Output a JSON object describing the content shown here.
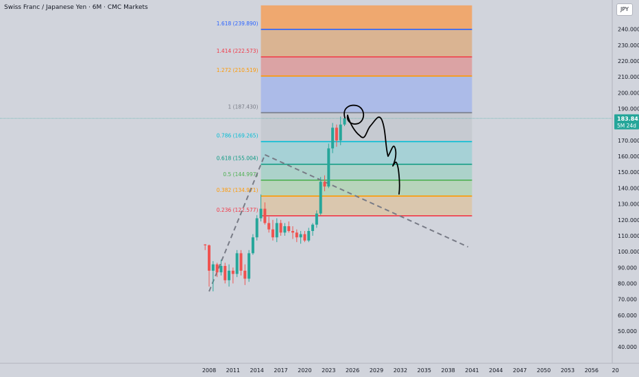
{
  "header": {
    "title": "Swiss Franc / Japanese Yen · 6M · CMC Markets",
    "currency": "JPY"
  },
  "price_label": {
    "value": "183.841",
    "countdown": "5M 24d",
    "color": "#26a69a"
  },
  "colors": {
    "background": "#d1d4dc",
    "up": "#26a69a",
    "down": "#ef5350",
    "trendline": "#787b86",
    "drawing": "#000000"
  },
  "chart_data": {
    "type": "candlestick",
    "title": "Swiss Franc / Japanese Yen · 6M · CMC Markets",
    "x_tick_labels": [
      "2008",
      "2011",
      "2014",
      "2017",
      "2020",
      "2023",
      "2026",
      "2029",
      "2032",
      "2035",
      "2038",
      "2041",
      "2044",
      "2047",
      "2050",
      "2053",
      "2056",
      "20"
    ],
    "y_tick_labels": [
      "40.000",
      "50.000",
      "60.000",
      "70.000",
      "80.000",
      "90.000",
      "100.000",
      "110.000",
      "120.000",
      "130.000",
      "140.000",
      "150.000",
      "160.000",
      "170.000",
      "180.000",
      "190.000",
      "200.000",
      "210.000",
      "220.000",
      "230.000",
      "240.000"
    ],
    "y_range": [
      30,
      255
    ],
    "x_range": [
      2005.5,
      2058
    ],
    "candles": [
      {
        "t": 2007.5,
        "o": 104.5,
        "h": 104.8,
        "l": 101,
        "c": 104
      },
      {
        "t": 2008.0,
        "o": 104,
        "h": 104.5,
        "l": 78,
        "c": 88
      },
      {
        "t": 2008.5,
        "o": 88,
        "h": 94,
        "l": 75,
        "c": 92
      },
      {
        "t": 2009.0,
        "o": 92,
        "h": 93,
        "l": 84,
        "c": 87
      },
      {
        "t": 2009.5,
        "o": 87,
        "h": 95,
        "l": 85,
        "c": 91
      },
      {
        "t": 2010.0,
        "o": 91,
        "h": 93,
        "l": 80,
        "c": 82
      },
      {
        "t": 2010.5,
        "o": 82,
        "h": 92,
        "l": 78,
        "c": 88
      },
      {
        "t": 2011.0,
        "o": 88,
        "h": 90,
        "l": 80,
        "c": 86
      },
      {
        "t": 2011.5,
        "o": 86,
        "h": 101,
        "l": 84,
        "c": 99
      },
      {
        "t": 2012.0,
        "o": 99,
        "h": 101,
        "l": 85,
        "c": 88
      },
      {
        "t": 2012.5,
        "o": 88,
        "h": 92,
        "l": 79,
        "c": 83
      },
      {
        "t": 2013.0,
        "o": 83,
        "h": 101,
        "l": 81,
        "c": 99
      },
      {
        "t": 2013.5,
        "o": 99,
        "h": 111,
        "l": 98,
        "c": 109
      },
      {
        "t": 2014.0,
        "o": 109,
        "h": 123,
        "l": 107,
        "c": 121
      },
      {
        "t": 2014.5,
        "o": 121,
        "h": 136,
        "l": 119,
        "c": 127
      },
      {
        "t": 2015.0,
        "o": 127,
        "h": 131,
        "l": 117,
        "c": 118
      },
      {
        "t": 2015.5,
        "o": 118,
        "h": 122,
        "l": 112,
        "c": 114
      },
      {
        "t": 2016.0,
        "o": 114,
        "h": 120,
        "l": 107,
        "c": 109
      },
      {
        "t": 2016.5,
        "o": 109,
        "h": 121,
        "l": 106,
        "c": 118
      },
      {
        "t": 2017.0,
        "o": 118,
        "h": 120,
        "l": 110,
        "c": 112
      },
      {
        "t": 2017.5,
        "o": 112,
        "h": 118,
        "l": 110,
        "c": 116
      },
      {
        "t": 2018.0,
        "o": 116,
        "h": 119,
        "l": 112,
        "c": 113
      },
      {
        "t": 2018.5,
        "o": 113,
        "h": 116,
        "l": 108,
        "c": 112
      },
      {
        "t": 2019.0,
        "o": 112,
        "h": 114,
        "l": 106,
        "c": 109
      },
      {
        "t": 2019.5,
        "o": 109,
        "h": 113,
        "l": 105,
        "c": 111
      },
      {
        "t": 2020.0,
        "o": 111,
        "h": 113,
        "l": 106,
        "c": 107
      },
      {
        "t": 2020.5,
        "o": 107,
        "h": 115,
        "l": 106,
        "c": 113
      },
      {
        "t": 2021.0,
        "o": 113,
        "h": 118,
        "l": 110,
        "c": 117
      },
      {
        "t": 2021.5,
        "o": 117,
        "h": 126,
        "l": 115,
        "c": 124
      },
      {
        "t": 2022.0,
        "o": 124,
        "h": 147,
        "l": 123,
        "c": 144
      },
      {
        "t": 2022.5,
        "o": 144,
        "h": 148,
        "l": 138,
        "c": 141
      },
      {
        "t": 2023.0,
        "o": 141,
        "h": 168,
        "l": 140,
        "c": 165
      },
      {
        "t": 2023.5,
        "o": 165,
        "h": 181,
        "l": 162,
        "c": 178
      },
      {
        "t": 2024.0,
        "o": 178,
        "h": 180,
        "l": 166,
        "c": 170
      },
      {
        "t": 2024.5,
        "o": 170,
        "h": 185,
        "l": 167,
        "c": 180
      },
      {
        "t": 2025.0,
        "o": 180,
        "h": 184,
        "l": 179,
        "c": 183.841
      }
    ],
    "fibonacci": [
      {
        "label": "1.618 (239.890)",
        "value": 239.89,
        "color": "#2962ff"
      },
      {
        "label": "1.414 (222.573)",
        "value": 222.573,
        "color": "#f23645"
      },
      {
        "label": "1.272 (210.519)",
        "value": 210.519,
        "color": "#ff9800"
      },
      {
        "label": "1 (187.430)",
        "value": 187.43,
        "color": "#787b86"
      },
      {
        "label": "0.786 (169.265)",
        "value": 169.265,
        "color": "#00bcd4"
      },
      {
        "label": "0.618 (155.004)",
        "value": 155.004,
        "color": "#089981"
      },
      {
        "label": "0.5 (144.997)",
        "value": 144.997,
        "color": "#4caf50"
      },
      {
        "label": "0.382 (134.971)",
        "value": 134.971,
        "color": "#ff9800"
      },
      {
        "label": "0.236 (122.577)",
        "value": 122.577,
        "color": "#f23645"
      }
    ],
    "fib_zones": [
      {
        "from": 239.89,
        "to": 255,
        "color": "#f5a05c"
      },
      {
        "from": 222.573,
        "to": 239.89,
        "color": "#dcae85"
      },
      {
        "from": 210.519,
        "to": 222.573,
        "color": "#dd9a9a"
      },
      {
        "from": 187.43,
        "to": 210.519,
        "color": "#a6b6ea"
      },
      {
        "from": 169.265,
        "to": 187.43,
        "color": "#c4c8cf"
      },
      {
        "from": 155.004,
        "to": 169.265,
        "color": "#9fd0d5"
      },
      {
        "from": 144.997,
        "to": 155.004,
        "color": "#a6d1c7"
      },
      {
        "from": 134.971,
        "to": 144.997,
        "color": "#b3d3b5"
      },
      {
        "from": 122.577,
        "to": 134.971,
        "color": "#dcc4a6"
      }
    ],
    "fib_x_range": [
      2014.5,
      2041
    ],
    "trendlines": [
      {
        "from": [
          2008.0,
          75.0
        ],
        "to": [
          2015.0,
          161.0
        ],
        "style": "dashed"
      },
      {
        "from": [
          2015.0,
          161.0
        ],
        "to": [
          2040.5,
          103.0
        ],
        "style": "dashed"
      }
    ],
    "current_price": 183.841
  }
}
